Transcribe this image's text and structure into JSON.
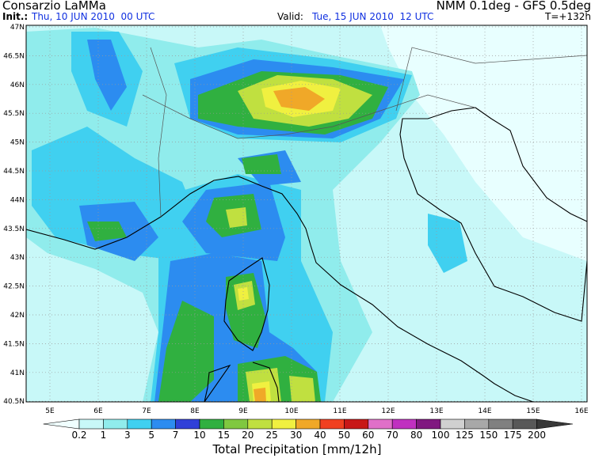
{
  "header": {
    "title": "Consarzio LaMMa",
    "model": "NMM 0.1deg - GFS 0.5deg",
    "init_label": "Init.:",
    "init_time": "Thu, 10 JUN 2010  00 UTC",
    "valid_label": "Valid:",
    "valid_time": "Tue, 15 JUN 2010  12 UTC",
    "lead_time": "T=+132h"
  },
  "map": {
    "lat_labels": [
      "47N",
      "46.5N",
      "46N",
      "45.5N",
      "45N",
      "44.5N",
      "44N",
      "43.5N",
      "43N",
      "42.5N",
      "42N",
      "41.5N",
      "41N",
      "40.5N"
    ],
    "lon_labels": [
      "5E",
      "6E",
      "7E",
      "8E",
      "9E",
      "10E",
      "11E",
      "12E",
      "13E",
      "14E",
      "15E",
      "16E"
    ]
  },
  "legend": {
    "title": "Total Precipitation [mm/12h]",
    "labels": [
      "0.2",
      "1",
      "3",
      "5",
      "7",
      "10",
      "15",
      "20",
      "25",
      "30",
      "40",
      "50",
      "60",
      "70",
      "80",
      "100",
      "125",
      "150",
      "175",
      "200"
    ],
    "colors": [
      "#f0ffff",
      "#c8f8f8",
      "#90ecec",
      "#40d0f0",
      "#2c8cf0",
      "#3040d8",
      "#30b040",
      "#80c840",
      "#c0e040",
      "#f0f040",
      "#f0a828",
      "#f04020",
      "#c81818",
      "#e070c8",
      "#c030c0",
      "#801880",
      "#d0d0d0",
      "#a8a8a8",
      "#808080",
      "#585858",
      "#383838"
    ]
  }
}
